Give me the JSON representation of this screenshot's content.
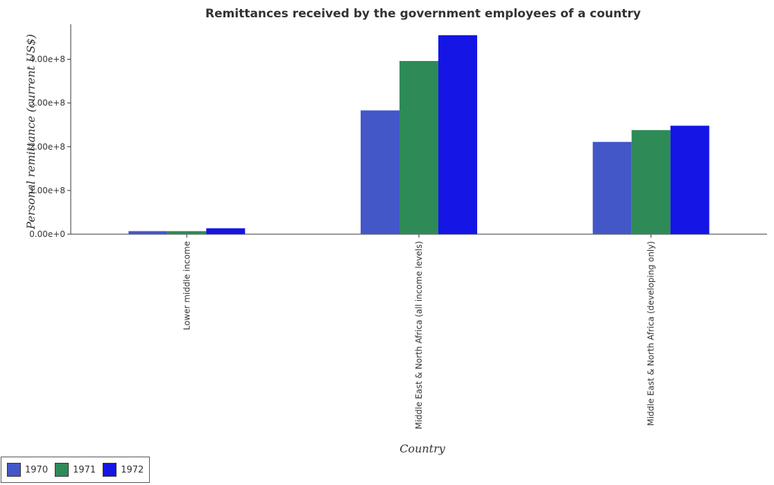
{
  "chart_data": {
    "type": "bar",
    "title": "Remittances received by the government employees of a country",
    "xlabel": "Country",
    "ylabel": "Personal remittance (current US$)",
    "categories": [
      "Lower middle income",
      "Middle East & North Africa (all income levels)",
      "Middle East & North Africa (developing only)"
    ],
    "series": [
      {
        "name": "1970",
        "color": "#4457c8",
        "values": [
          7000000,
          283000000,
          211000000
        ]
      },
      {
        "name": "1971",
        "color": "#2e8b57",
        "values": [
          7000000,
          396000000,
          238000000
        ]
      },
      {
        "name": "1972",
        "color": "#1515e6",
        "values": [
          13500000,
          455000000,
          248000000
        ]
      }
    ],
    "ylim": [
      0,
      480000000
    ],
    "yticks": [
      0,
      100000000,
      200000000,
      300000000,
      400000000
    ],
    "ytick_labels": [
      "0.00e+0",
      "1.00e+8",
      "2.00e+8",
      "3.00e+8",
      "4.00e+8"
    ],
    "grid": false,
    "legend_position": "bottom-left"
  }
}
